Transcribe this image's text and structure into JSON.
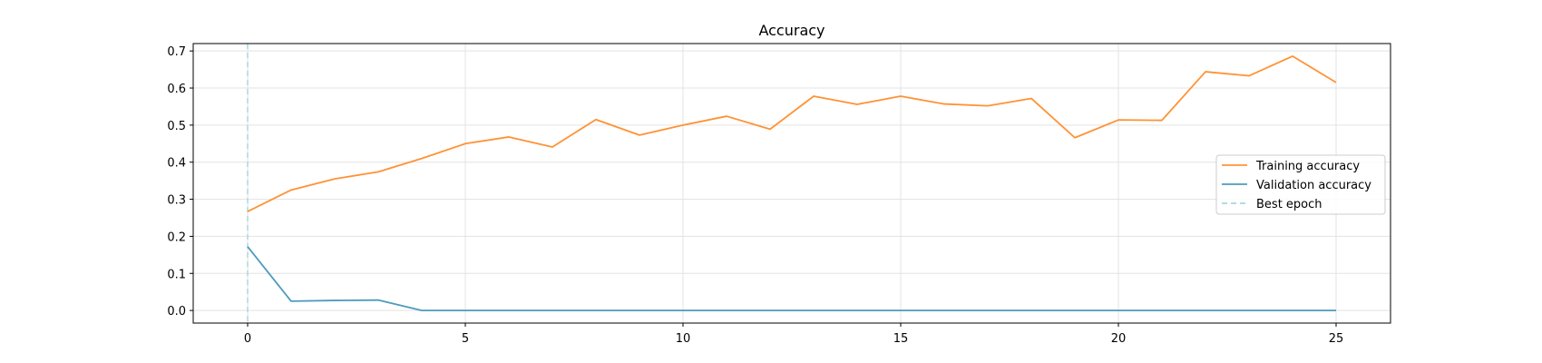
{
  "chart_data": {
    "type": "line",
    "title": "Accuracy",
    "xlabel": "",
    "ylabel": "",
    "xlim": [
      -1.25,
      26.25
    ],
    "ylim": [
      -0.034,
      0.72
    ],
    "xticks": [
      0,
      5,
      10,
      15,
      20,
      25
    ],
    "yticks": [
      0.0,
      0.1,
      0.2,
      0.3,
      0.4,
      0.5,
      0.6,
      0.7
    ],
    "xtick_labels": [
      "0",
      "5",
      "10",
      "15",
      "20",
      "25"
    ],
    "ytick_labels": [
      "0.0",
      "0.1",
      "0.2",
      "0.3",
      "0.4",
      "0.5",
      "0.6",
      "0.7"
    ],
    "grid": true,
    "legend_position": "center-right",
    "x": [
      0,
      1,
      2,
      3,
      4,
      5,
      6,
      7,
      8,
      9,
      10,
      11,
      12,
      13,
      14,
      15,
      16,
      17,
      18,
      19,
      20,
      21,
      22,
      23,
      24,
      25
    ],
    "series": [
      {
        "name": "Training accuracy",
        "color": "#ff9234",
        "style": "solid",
        "values": [
          0.267,
          0.325,
          0.355,
          0.374,
          0.41,
          0.45,
          0.468,
          0.441,
          0.515,
          0.473,
          0.5,
          0.524,
          0.489,
          0.578,
          0.556,
          0.578,
          0.557,
          0.552,
          0.572,
          0.466,
          0.514,
          0.513,
          0.644,
          0.633,
          0.686,
          0.615
        ]
      },
      {
        "name": "Validation accuracy",
        "color": "#4d9bbd",
        "style": "solid",
        "values": [
          0.172,
          0.025,
          0.027,
          0.028,
          0.0,
          0.0,
          0.0,
          0.0,
          0.0,
          0.0,
          0.0,
          0.0,
          0.0,
          0.0,
          0.0,
          0.0,
          0.0,
          0.0,
          0.0,
          0.0,
          0.0,
          0.0,
          0.0,
          0.0,
          0.0,
          0.0
        ]
      }
    ],
    "best_epoch": {
      "name": "Best epoch",
      "x": 0,
      "color": "#a8d8df",
      "style": "dashed"
    }
  }
}
